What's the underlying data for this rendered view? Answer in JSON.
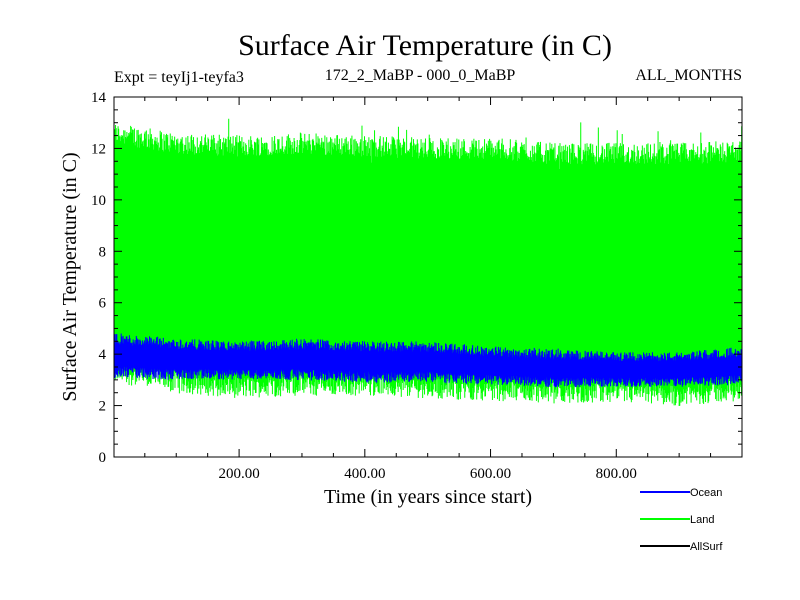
{
  "chart_data": {
    "type": "line",
    "title": "Surface Air Temperature (in C)",
    "subtitle_left": "Expt = teyIj1-teyfa3",
    "subtitle_center": "172_2_MaBP - 000_0_MaBP",
    "subtitle_right": "ALL_MONTHS",
    "xlabel": "Time (in years since start)",
    "ylabel": "Surface Air Temperature (in C)",
    "xlim": [
      1,
      1000
    ],
    "ylim": [
      0,
      14
    ],
    "xticks": [
      200,
      400,
      600,
      800
    ],
    "xtick_labels": [
      "200.00",
      "400.00",
      "600.00",
      "800.00"
    ],
    "yticks": [
      0,
      2,
      4,
      6,
      8,
      10,
      12,
      14
    ],
    "ytick_labels": [
      "0",
      "2",
      "4",
      "6",
      "8",
      "10",
      "12",
      "14"
    ],
    "legend_position": "bottom-right",
    "series": [
      {
        "name": "Land",
        "color": "#00ff00",
        "stats": {
          "min": 1.7,
          "max": 13.9,
          "mean_low": 3.0,
          "mean_high": 12.0
        },
        "trend": [
          {
            "x": 1,
            "low": 3.3,
            "high": 12.6
          },
          {
            "x": 100,
            "low": 2.9,
            "high": 12.2
          },
          {
            "x": 200,
            "low": 2.7,
            "high": 12.1
          },
          {
            "x": 300,
            "low": 2.8,
            "high": 12.2
          },
          {
            "x": 400,
            "low": 2.8,
            "high": 12.1
          },
          {
            "x": 500,
            "low": 2.7,
            "high": 12.0
          },
          {
            "x": 600,
            "low": 2.6,
            "high": 12.0
          },
          {
            "x": 700,
            "low": 2.5,
            "high": 11.8
          },
          {
            "x": 800,
            "low": 2.5,
            "high": 11.8
          },
          {
            "x": 900,
            "low": 2.4,
            "high": 11.8
          },
          {
            "x": 1000,
            "low": 2.6,
            "high": 11.9
          }
        ]
      },
      {
        "name": "Ocean",
        "color": "#0000ff",
        "trend": [
          {
            "x": 1,
            "low": 3.3,
            "high": 4.6
          },
          {
            "x": 100,
            "low": 3.2,
            "high": 4.4
          },
          {
            "x": 200,
            "low": 3.2,
            "high": 4.3
          },
          {
            "x": 300,
            "low": 3.2,
            "high": 4.4
          },
          {
            "x": 400,
            "low": 3.1,
            "high": 4.3
          },
          {
            "x": 500,
            "low": 3.1,
            "high": 4.3
          },
          {
            "x": 600,
            "low": 3.0,
            "high": 4.1
          },
          {
            "x": 700,
            "low": 2.9,
            "high": 4.0
          },
          {
            "x": 800,
            "low": 2.9,
            "high": 3.9
          },
          {
            "x": 900,
            "low": 2.9,
            "high": 3.9
          },
          {
            "x": 1000,
            "low": 3.0,
            "high": 4.1
          }
        ]
      },
      {
        "name": "AllSurf",
        "color": "#000000",
        "trend": []
      }
    ],
    "legend": [
      {
        "label": "Ocean",
        "color": "#0000ff"
      },
      {
        "label": "Land",
        "color": "#00ff00"
      },
      {
        "label": "AllSurf",
        "color": "#000000"
      }
    ]
  }
}
